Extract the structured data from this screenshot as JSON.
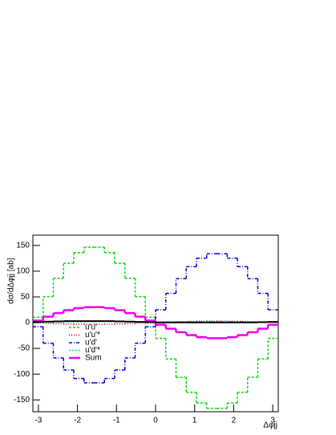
{
  "chart_data": {
    "type": "histogram",
    "y_label": "dσ/dΔφjj [ab]",
    "x_label": "Δφjj",
    "bins": [
      -3.1416,
      -2.8798,
      -2.618,
      -2.3562,
      -2.0944,
      -1.8326,
      -1.5708,
      -1.309,
      -1.0472,
      -0.7854,
      -0.5236,
      -0.2618,
      0,
      0.2618,
      0.5236,
      0.7854,
      1.0472,
      1.309,
      1.5708,
      1.8326,
      2.0944,
      2.3562,
      2.618,
      2.8798,
      3.1416
    ],
    "xlim": [
      -3.1416,
      3.1416
    ],
    "xticks": [
      -3,
      -2,
      -1,
      0,
      1,
      2,
      3
    ],
    "ylim": [
      -173,
      170
    ],
    "yticks": [
      -150,
      -100,
      -50,
      0,
      50,
      100,
      150
    ],
    "series": [
      {
        "name": "u'u'",
        "color": "#00e000",
        "dash": "3,2",
        "width": 1.5,
        "values": [
          10.6,
          50.5,
          86.2,
          115.4,
          136,
          146.6,
          146.6,
          136,
          115.4,
          86.2,
          50.5,
          10.6,
          -30.6,
          -70.5,
          -106.2,
          -135.4,
          -156,
          -166.6,
          -166.6,
          -156,
          -135.4,
          -106.2,
          -70.5,
          -30.6
        ]
      },
      {
        "name": "u'u'*",
        "color": "#e00000",
        "dash": "1,2",
        "width": 1.5,
        "values": [
          -0.4,
          -1.1,
          -1.8,
          -2.4,
          -2.8,
          -3,
          -3,
          -2.8,
          -2.4,
          -1.8,
          -1.1,
          -0.4,
          0.4,
          1.1,
          1.8,
          2.4,
          2.8,
          3,
          3,
          2.8,
          2.4,
          1.8,
          1.1,
          0.4
        ]
      },
      {
        "name": "u'd'",
        "color": "#0000e0",
        "dash": "4,2,1,2",
        "width": 1.5,
        "values": [
          -8,
          -39.9,
          -68.5,
          -91.9,
          -108.4,
          -116.9,
          -116.9,
          -108.4,
          -91.9,
          -68.5,
          -39.9,
          -8,
          25,
          56.9,
          85.5,
          108.9,
          125.4,
          133.9,
          133.9,
          125.4,
          108.9,
          85.5,
          56.9,
          25
        ]
      },
      {
        "name": "u'd'*",
        "color": "#00d0d0",
        "dash": "2,2",
        "width": 1.5,
        "values": [
          1,
          1.2,
          1.5,
          1.8,
          2,
          2.2,
          2.2,
          2,
          1.8,
          1.5,
          1.2,
          1,
          1,
          1.2,
          1.5,
          1.8,
          2,
          2.2,
          2.2,
          2,
          1.8,
          1.5,
          1.2,
          1
        ]
      },
      {
        "name": "Sum",
        "color": "#ee00ee",
        "dash": "none",
        "width": 2.5,
        "values": [
          4,
          11.7,
          18.6,
          24.2,
          28.2,
          30.2,
          30.2,
          28.2,
          24.2,
          18.6,
          11.7,
          4,
          -4,
          -11.7,
          -18.6,
          -24.2,
          -28.2,
          -30.2,
          -30.2,
          -28.2,
          -24.2,
          -18.6,
          -11.7,
          -4
        ]
      },
      {
        "color": "#000000",
        "dash": "none",
        "width": 2,
        "values": [
          1.5,
          2,
          2.5,
          3,
          3,
          3,
          3,
          3,
          2.5,
          2,
          1.5,
          1,
          0.5,
          0.5,
          0.5,
          0.5,
          0.5,
          0.5,
          0.5,
          0.5,
          0.5,
          0.5,
          1,
          1.5
        ]
      }
    ]
  }
}
